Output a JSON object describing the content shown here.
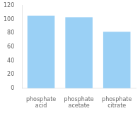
{
  "chart_data": {
    "type": "bar",
    "categories": [
      "phosphate\nacid",
      "phosphate\nacetate",
      "phosphate\ncitrate"
    ],
    "values": [
      105,
      103,
      82
    ],
    "ylim": [
      0,
      120
    ],
    "yticks": [
      0,
      20,
      40,
      60,
      80,
      100,
      120
    ],
    "grid": false
  }
}
